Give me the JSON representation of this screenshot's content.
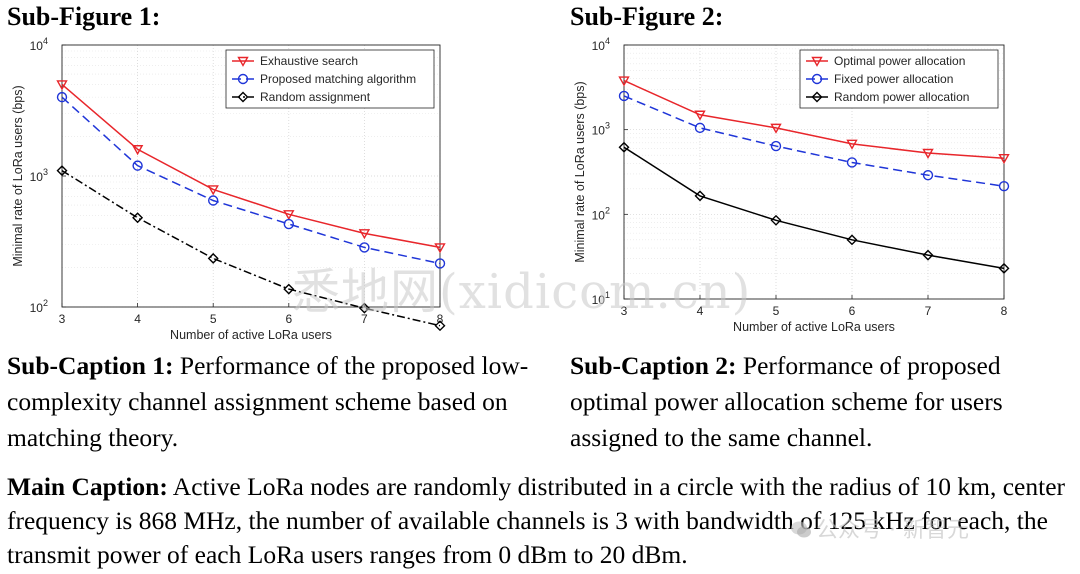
{
  "subfigures": [
    {
      "heading": "Sub-Figure 1:",
      "caption_label": "Sub-Caption 1:",
      "caption_text": " Performance of the proposed low-complexity channel assignment scheme based on matching theory."
    },
    {
      "heading": "Sub-Figure 2:",
      "caption_label": "Sub-Caption 2:",
      "caption_text": " Performance of proposed optimal power allocation scheme for users assigned to the same channel."
    }
  ],
  "main_caption": {
    "label": "Main Caption:",
    "text": " Active LoRa nodes are randomly distributed in a circle with the radius of 10 km, center frequency is 868 MHz, the number of available channels is 3 with bandwidth of 125 kHz for each, the transmit power of each LoRa users ranges from 0 dBm to 20 dBm."
  },
  "watermark": {
    "text": "悉地网(xidicom.cn)",
    "secondary": "公众号 · 新智元"
  },
  "chart_data": [
    {
      "type": "line",
      "xlabel": "Number of active LoRa users",
      "ylabel": "Minimal rate of LoRa users (bps)",
      "x": [
        3,
        4,
        5,
        6,
        7,
        8
      ],
      "xlim": [
        3,
        8
      ],
      "ylim": [
        100,
        10000
      ],
      "yscale": "log",
      "y_ticks": [
        {
          "base": "10",
          "exp": "2",
          "value": 100
        },
        {
          "base": "10",
          "exp": "3",
          "value": 1000
        },
        {
          "base": "10",
          "exp": "4",
          "value": 10000
        }
      ],
      "grid": true,
      "legend_position": "top-right",
      "series": [
        {
          "name": "Exhaustive search",
          "values": [
            5000,
            1600,
            790,
            510,
            365,
            285
          ],
          "color": "#e8262b",
          "dash": "",
          "marker": "triangle-down"
        },
        {
          "name": "Proposed matching algorithm",
          "values": [
            4000,
            1200,
            650,
            430,
            285,
            215
          ],
          "color": "#1f35d8",
          "dash": "9,5",
          "marker": "circle"
        },
        {
          "name": "Random assignment",
          "values": [
            1100,
            480,
            235,
            137,
            98,
            72
          ],
          "color": "#000000",
          "dash": "8,3,2,3",
          "marker": "diamond"
        }
      ]
    },
    {
      "type": "line",
      "xlabel": "Number of active LoRa users",
      "ylabel": "Minimal rate of LoRa users (bps)",
      "x": [
        3,
        4,
        5,
        6,
        7,
        8
      ],
      "xlim": [
        3,
        8
      ],
      "ylim": [
        10,
        10000
      ],
      "yscale": "log",
      "y_ticks": [
        {
          "base": "10",
          "exp": "1",
          "value": 10
        },
        {
          "base": "10",
          "exp": "2",
          "value": 100
        },
        {
          "base": "10",
          "exp": "3",
          "value": 1000
        },
        {
          "base": "10",
          "exp": "4",
          "value": 10000
        }
      ],
      "grid": true,
      "legend_position": "top-right",
      "series": [
        {
          "name": "Optimal power allocation",
          "values": [
            3800,
            1500,
            1050,
            680,
            530,
            460
          ],
          "color": "#e8262b",
          "dash": "",
          "marker": "triangle-down"
        },
        {
          "name": "Fixed power allocation",
          "values": [
            2500,
            1050,
            640,
            410,
            290,
            215
          ],
          "color": "#1f35d8",
          "dash": "9,5",
          "marker": "circle"
        },
        {
          "name": "Random power allocation",
          "values": [
            620,
            165,
            85,
            50,
            33,
            23
          ],
          "color": "#000000",
          "dash": "",
          "marker": "diamond"
        }
      ]
    }
  ]
}
